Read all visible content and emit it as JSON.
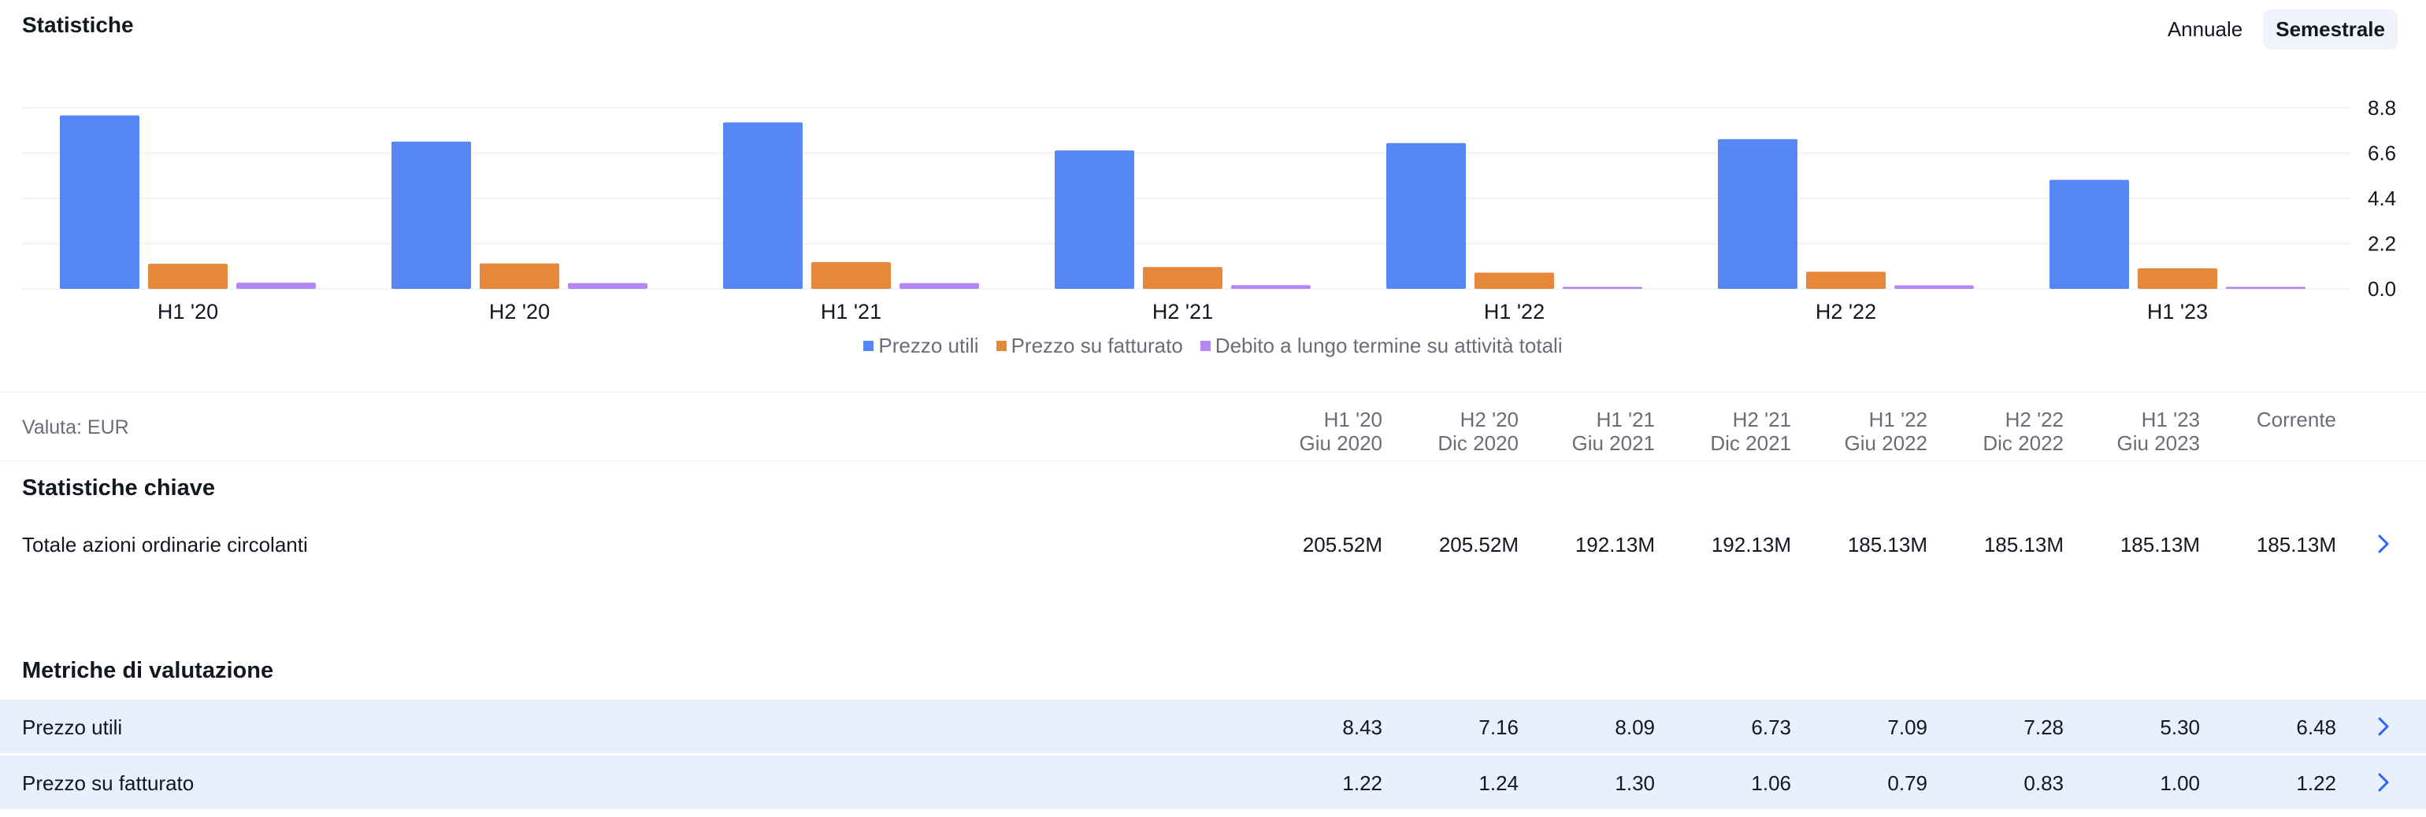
{
  "header": {
    "title": "Statistiche"
  },
  "period_toggle": [
    {
      "label": "Annuale",
      "active": false
    },
    {
      "label": "Semestrale",
      "active": true
    }
  ],
  "chart_data": {
    "type": "bar",
    "categories": [
      "H1 '20",
      "H2 '20",
      "H1 '21",
      "H2 '21",
      "H1 '22",
      "H2 '22",
      "H1 '23"
    ],
    "series": [
      {
        "name": "Prezzo utili",
        "color": "#5787f6",
        "values": [
          8.43,
          7.16,
          8.09,
          6.73,
          7.09,
          7.28,
          5.3
        ]
      },
      {
        "name": "Prezzo su fatturato",
        "color": "#e5883a",
        "values": [
          1.22,
          1.24,
          1.3,
          1.06,
          0.79,
          0.83,
          1.0
        ]
      },
      {
        "name": "Debito a lungo termine su attività totali",
        "color": "#b388f5",
        "values": [
          0.3,
          0.28,
          0.28,
          0.18,
          0.1,
          0.17,
          0.1
        ]
      }
    ],
    "yticks": [
      "8.8",
      "6.6",
      "4.4",
      "2.2",
      "0.0"
    ],
    "ylim": [
      0,
      8.8
    ],
    "y_axis_position": "right",
    "legend_position": "bottom-center",
    "grid": true
  },
  "table": {
    "currency_label": "Valuta: EUR",
    "columns": [
      {
        "period": "H1 '20",
        "date": "Giu 2020"
      },
      {
        "period": "H2 '20",
        "date": "Dic 2020"
      },
      {
        "period": "H1 '21",
        "date": "Giu 2021"
      },
      {
        "period": "H2 '21",
        "date": "Dic 2021"
      },
      {
        "period": "H1 '22",
        "date": "Giu 2022"
      },
      {
        "period": "H2 '22",
        "date": "Dic 2022"
      },
      {
        "period": "H1 '23",
        "date": "Giu 2023"
      },
      {
        "period": "Corrente",
        "date": ""
      }
    ],
    "sections": [
      {
        "title": "Statistiche chiave",
        "rows": [
          {
            "label": "Totale azioni ordinarie circolanti",
            "highlight": false,
            "values": [
              "205.52M",
              "205.52M",
              "192.13M",
              "192.13M",
              "185.13M",
              "185.13M",
              "185.13M",
              "185.13M"
            ]
          }
        ]
      },
      {
        "title": "Metriche di valutazione",
        "rows": [
          {
            "label": "Prezzo utili",
            "highlight": true,
            "values": [
              "8.43",
              "7.16",
              "8.09",
              "6.73",
              "7.09",
              "7.28",
              "5.30",
              "6.48"
            ]
          },
          {
            "label": "Prezzo su fatturato",
            "highlight": true,
            "values": [
              "1.22",
              "1.24",
              "1.30",
              "1.06",
              "0.79",
              "0.83",
              "1.00",
              "1.22"
            ]
          }
        ]
      }
    ]
  }
}
